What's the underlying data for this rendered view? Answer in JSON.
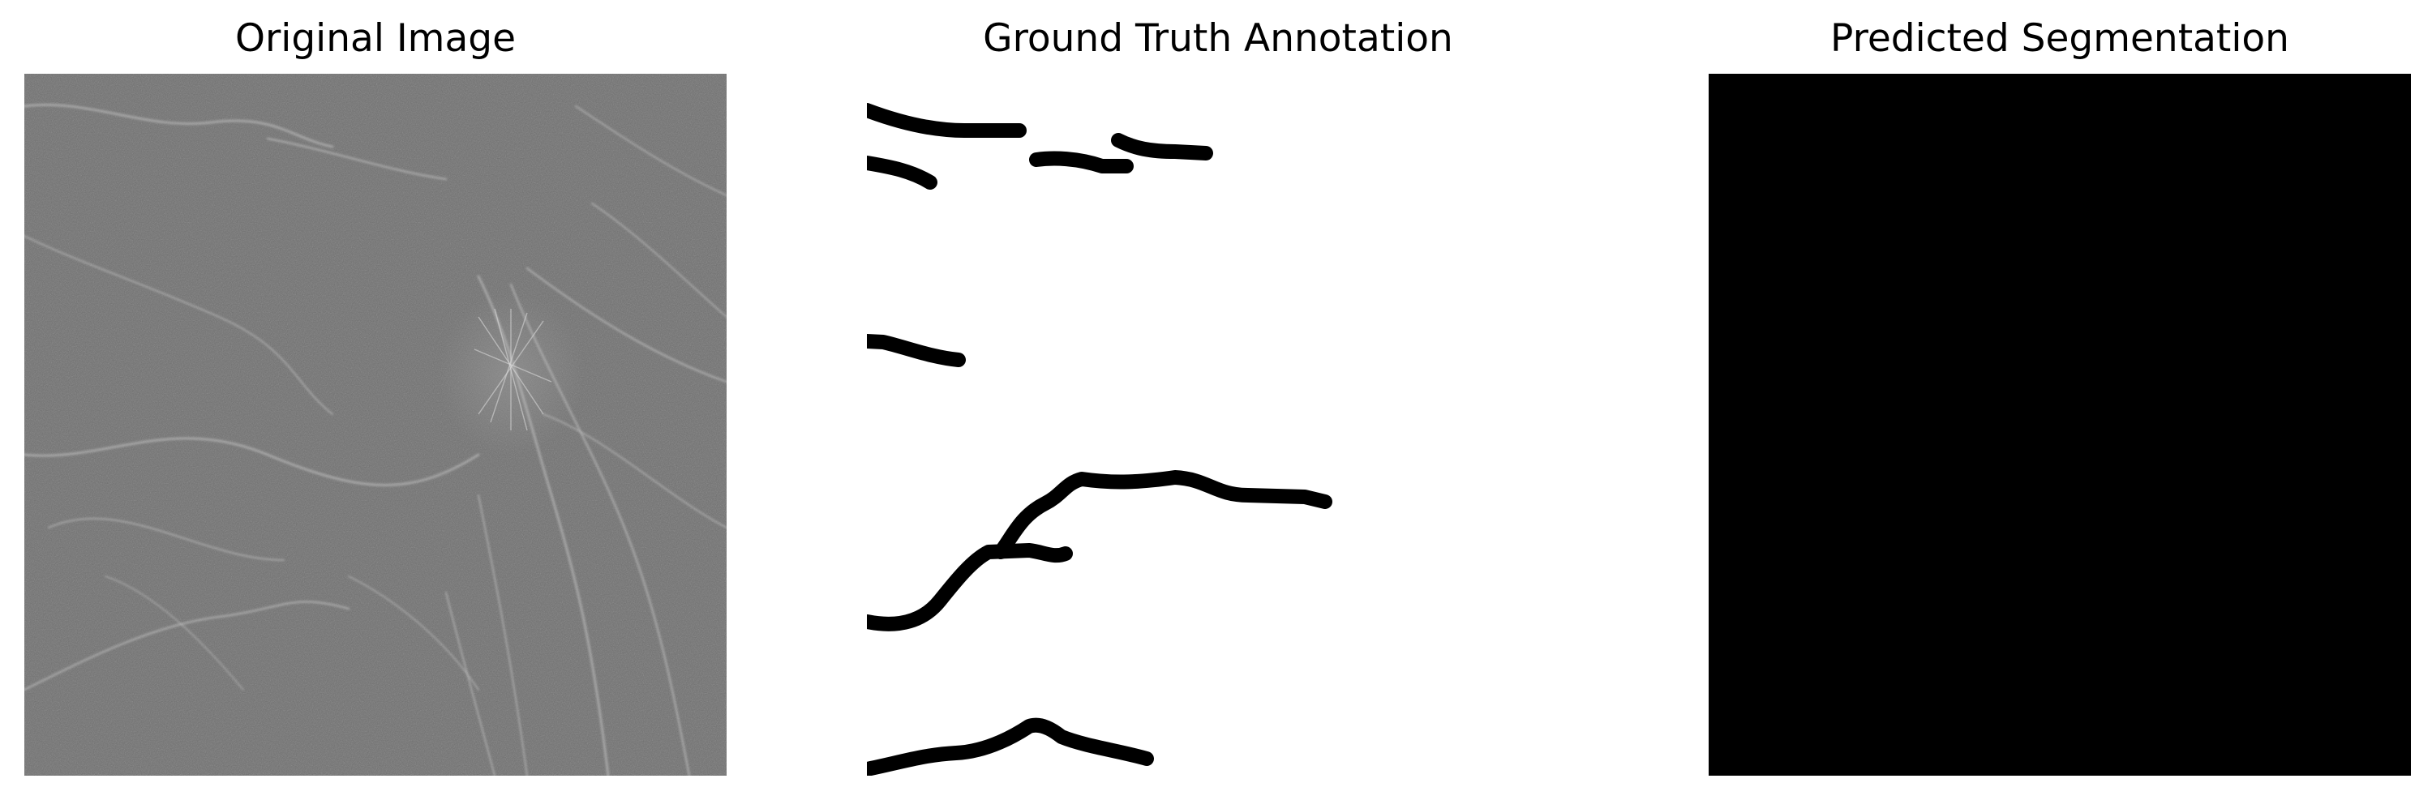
{
  "panels": [
    {
      "title": "Original Image"
    },
    {
      "title": "Ground Truth Annotation"
    },
    {
      "title": "Predicted Segmentation"
    }
  ],
  "colors": {
    "background": "#ffffff",
    "retina_gray": "#6e6e6e",
    "annotation_stroke": "#000000",
    "prediction_fill": "#000000"
  }
}
